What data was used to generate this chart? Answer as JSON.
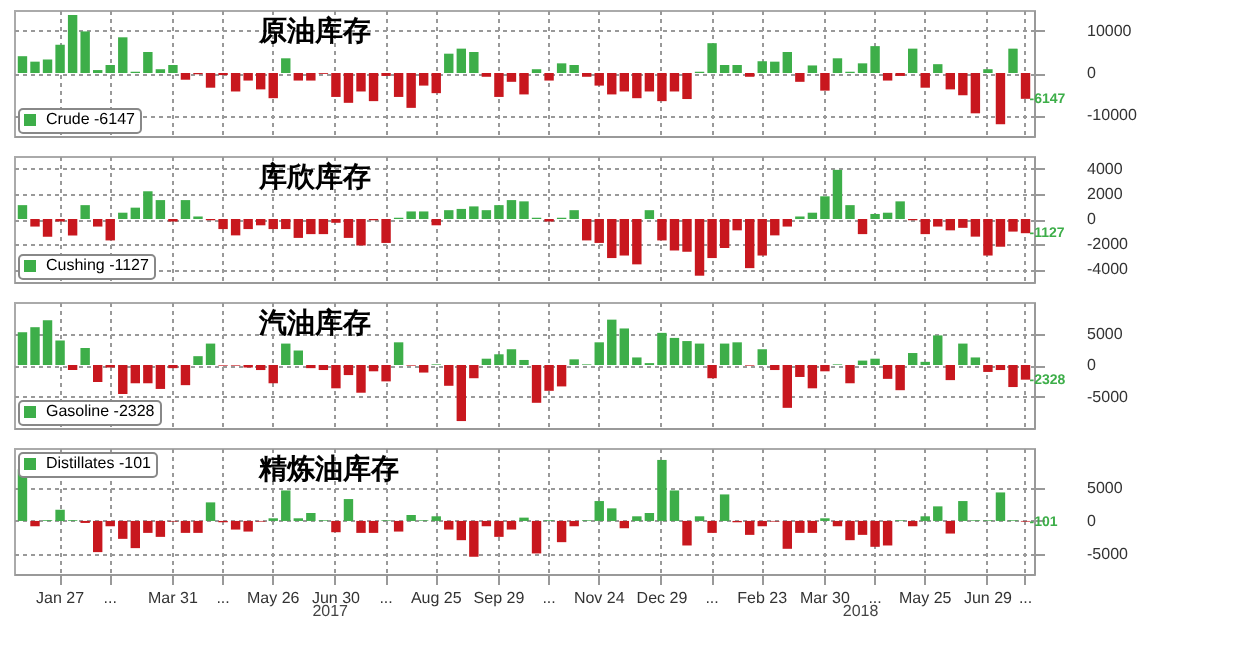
{
  "chart_data": [
    {
      "type": "bar",
      "title": "原油库存",
      "categories": [
        null,
        null,
        null,
        null,
        null,
        null,
        null,
        null,
        null,
        null,
        null,
        null,
        null,
        null,
        null,
        null,
        null,
        null,
        null,
        null,
        null,
        null,
        null,
        null,
        null,
        null,
        null,
        null,
        null,
        null,
        null,
        null,
        null,
        null,
        null,
        null,
        null,
        null,
        null,
        null,
        null,
        null,
        null,
        null,
        null,
        null,
        null,
        null,
        null,
        null,
        null,
        null,
        null,
        null,
        null,
        null,
        null,
        null,
        null,
        null,
        null,
        null,
        null,
        null,
        null,
        null,
        null,
        null,
        null,
        null,
        null,
        null,
        null,
        null,
        null,
        null,
        null,
        null,
        null,
        null,
        null
      ],
      "tick_labels": "y",
      "grid": true,
      "legend": "bottom left",
      "ylim": [
        -15000,
        15000
      ],
      "yticks": [
        10000,
        0,
        -10000
      ],
      "series": [
        {
          "name": "Crude -6147",
          "color": "#3dae49",
          "values": [
            4000,
            2700,
            3200,
            6700,
            13800,
            9900,
            700,
            1900,
            8500,
            300,
            5000,
            900,
            1900,
            -1600,
            -300,
            -3500,
            -500,
            -4400,
            -1800,
            -3900,
            -6000,
            3500,
            -1800,
            -1800,
            -200,
            -5700,
            -7100,
            -4400,
            -6700,
            -700,
            -5700,
            -8300,
            -3000,
            -4800,
            4600,
            5800,
            5000,
            -900,
            -5700,
            -2100,
            -5100,
            900,
            -1800,
            2300,
            1900,
            -900,
            -3000,
            -5100,
            -4400,
            -6000,
            -4400,
            -6700,
            -4400,
            -6200,
            300,
            7100,
            1900,
            1900,
            -900,
            2800,
            2700,
            5000,
            -2100,
            1800,
            -4200,
            3500,
            300,
            2300,
            6400,
            -1800,
            -700,
            5800,
            -3500,
            2100,
            -3900,
            -5300,
            -9600,
            900,
            -12200,
            5800,
            -6147
          ],
          "colors": [
            "#3dae49",
            "#3dae49",
            "#3dae49",
            "#3dae49",
            "#3dae49",
            "#3dae49",
            "#3dae49",
            "#3dae49",
            "#3dae49",
            "#3dae49",
            "#3dae49",
            "#3dae49",
            "#3dae49",
            "#c8171e",
            "#c8171e",
            "#c8171e",
            "#c8171e",
            "#c8171e",
            "#c8171e",
            "#c8171e",
            "#c8171e",
            "#3dae49",
            "#c8171e",
            "#c8171e",
            "#c8171e",
            "#c8171e",
            "#c8171e",
            "#c8171e",
            "#c8171e",
            "#c8171e",
            "#c8171e",
            "#c8171e",
            "#c8171e",
            "#c8171e",
            "#3dae49",
            "#3dae49",
            "#3dae49",
            "#c8171e",
            "#c8171e",
            "#c8171e",
            "#c8171e",
            "#3dae49",
            "#c8171e",
            "#3dae49",
            "#3dae49",
            "#c8171e",
            "#c8171e",
            "#c8171e",
            "#c8171e",
            "#c8171e",
            "#c8171e",
            "#c8171e",
            "#c8171e",
            "#c8171e",
            "#3dae49",
            "#3dae49",
            "#3dae49",
            "#3dae49",
            "#c8171e",
            "#3dae49",
            "#3dae49",
            "#3dae49",
            "#c8171e",
            "#3dae49",
            "#c8171e",
            "#3dae49",
            "#3dae49",
            "#3dae49",
            "#3dae49",
            "#c8171e",
            "#c8171e",
            "#3dae49",
            "#c8171e",
            "#3dae49",
            "#c8171e",
            "#c8171e",
            "#c8171e",
            "#3dae49",
            "#c8171e",
            "#3dae49",
            "#c8171e"
          ],
          "value_labels": [
            null,
            null,
            null,
            null,
            null,
            null,
            null,
            null,
            null,
            null,
            null,
            null,
            null,
            null,
            null,
            null,
            null,
            null,
            null,
            null,
            null,
            null,
            null,
            null,
            null,
            null,
            null,
            null,
            null,
            null,
            null,
            null,
            null,
            null,
            null,
            null,
            null,
            null,
            null,
            null,
            null,
            null,
            null,
            null,
            null,
            null,
            null,
            null,
            null,
            null,
            null,
            null,
            null,
            null,
            null,
            null,
            null,
            null,
            null,
            null,
            null,
            null,
            null,
            null,
            null,
            null,
            null,
            null,
            null,
            null,
            null,
            null,
            null,
            null,
            null,
            null,
            null,
            null,
            null,
            null,
            "-6147"
          ]
        }
      ]
    },
    {
      "type": "bar",
      "title": "库欣库存",
      "categories": [
        null,
        null,
        null,
        null,
        null,
        null,
        null,
        null,
        null,
        null,
        null,
        null,
        null,
        null,
        null,
        null,
        null,
        null,
        null,
        null,
        null,
        null,
        null,
        null,
        null,
        null,
        null,
        null,
        null,
        null,
        null,
        null,
        null,
        null,
        null,
        null,
        null,
        null,
        null,
        null,
        null,
        null,
        null,
        null,
        null,
        null,
        null,
        null,
        null,
        null,
        null,
        null,
        null,
        null,
        null,
        null,
        null,
        null,
        null,
        null,
        null,
        null,
        null,
        null,
        null,
        null,
        null,
        null,
        null,
        null,
        null,
        null,
        null,
        null,
        null,
        null,
        null,
        null,
        null,
        null,
        null
      ],
      "tick_labels": "y",
      "grid": true,
      "legend": "bottom left",
      "ylim": [
        -5000,
        5000
      ],
      "yticks": [
        4000,
        2000,
        0,
        -2000,
        -4000
      ],
      "series": [
        {
          "name": "Cushing -1127",
          "color": "#3dae49",
          "values": [
            1100,
            -600,
            -1400,
            -200,
            -1300,
            1100,
            -600,
            -1700,
            500,
            900,
            2200,
            1500,
            -200,
            1500,
            200,
            -100,
            -800,
            -1300,
            -800,
            -500,
            -800,
            -800,
            -1500,
            -1200,
            -1200,
            -300,
            -1500,
            -2100,
            -100,
            -1900,
            100,
            600,
            600,
            -500,
            700,
            800,
            1000,
            700,
            1100,
            1500,
            1400,
            100,
            -200,
            100,
            700,
            -1700,
            -1900,
            -3100,
            -2900,
            -3600,
            700,
            -1700,
            -2500,
            -2600,
            -4500,
            -3100,
            -2300,
            -900,
            -3900,
            -2900,
            -1300,
            -600,
            200,
            500,
            1800,
            3900,
            1100,
            -1200,
            400,
            500,
            1400,
            -100,
            -1200,
            -600,
            -900,
            -700,
            -1400,
            -2900,
            -2200,
            -1000,
            -1127
          ],
          "colors": [
            "#3dae49",
            "#c8171e",
            "#c8171e",
            "#c8171e",
            "#c8171e",
            "#3dae49",
            "#c8171e",
            "#c8171e",
            "#3dae49",
            "#3dae49",
            "#3dae49",
            "#3dae49",
            "#c8171e",
            "#3dae49",
            "#3dae49",
            "#c8171e",
            "#c8171e",
            "#c8171e",
            "#c8171e",
            "#c8171e",
            "#c8171e",
            "#c8171e",
            "#c8171e",
            "#c8171e",
            "#c8171e",
            "#c8171e",
            "#c8171e",
            "#c8171e",
            "#c8171e",
            "#c8171e",
            "#3dae49",
            "#3dae49",
            "#3dae49",
            "#c8171e",
            "#3dae49",
            "#3dae49",
            "#3dae49",
            "#3dae49",
            "#3dae49",
            "#3dae49",
            "#3dae49",
            "#3dae49",
            "#c8171e",
            "#3dae49",
            "#3dae49",
            "#c8171e",
            "#c8171e",
            "#c8171e",
            "#c8171e",
            "#c8171e",
            "#3dae49",
            "#c8171e",
            "#c8171e",
            "#c8171e",
            "#c8171e",
            "#c8171e",
            "#c8171e",
            "#c8171e",
            "#c8171e",
            "#c8171e",
            "#c8171e",
            "#c8171e",
            "#3dae49",
            "#3dae49",
            "#3dae49",
            "#3dae49",
            "#3dae49",
            "#c8171e",
            "#3dae49",
            "#3dae49",
            "#3dae49",
            "#c8171e",
            "#c8171e",
            "#c8171e",
            "#c8171e",
            "#c8171e",
            "#c8171e",
            "#c8171e",
            "#c8171e",
            "#c8171e",
            "#c8171e"
          ],
          "value_labels": [
            null,
            null,
            null,
            null,
            null,
            null,
            null,
            null,
            null,
            null,
            null,
            null,
            null,
            null,
            null,
            null,
            null,
            null,
            null,
            null,
            null,
            null,
            null,
            null,
            null,
            null,
            null,
            null,
            null,
            null,
            null,
            null,
            null,
            null,
            null,
            null,
            null,
            null,
            null,
            null,
            null,
            null,
            null,
            null,
            null,
            null,
            null,
            null,
            null,
            null,
            null,
            null,
            null,
            null,
            null,
            null,
            null,
            null,
            null,
            null,
            null,
            null,
            null,
            null,
            null,
            null,
            null,
            null,
            null,
            null,
            null,
            null,
            null,
            null,
            null,
            null,
            null,
            null,
            null,
            null,
            "-1127"
          ]
        }
      ]
    },
    {
      "type": "bar",
      "title": "汽油库存",
      "categories": [
        null,
        null,
        null,
        null,
        null,
        null,
        null,
        null,
        null,
        null,
        null,
        null,
        null,
        null,
        null,
        null,
        null,
        null,
        null,
        null,
        null,
        null,
        null,
        null,
        null,
        null,
        null,
        null,
        null,
        null,
        null,
        null,
        null,
        null,
        null,
        null,
        null,
        null,
        null,
        null,
        null,
        null,
        null,
        null,
        null,
        null,
        null,
        null,
        null,
        null,
        null,
        null,
        null,
        null,
        null,
        null,
        null,
        null,
        null,
        null,
        null,
        null,
        null,
        null,
        null,
        null,
        null,
        null,
        null,
        null,
        null,
        null,
        null,
        null,
        null,
        null,
        null,
        null,
        null,
        null,
        null
      ],
      "tick_labels": "y",
      "grid": true,
      "legend": "bottom left",
      "ylim": [
        -10000,
        10000
      ],
      "yticks": [
        5000,
        0,
        -5000
      ],
      "series": [
        {
          "name": "Gasoline -2328",
          "color": "#3dae49",
          "values": [
            5200,
            6000,
            7100,
            3900,
            -800,
            2700,
            -2700,
            -400,
            -4600,
            -2900,
            -2900,
            -3800,
            -500,
            -3200,
            1400,
            3400,
            -100,
            -100,
            -400,
            -800,
            -2900,
            3400,
            2300,
            -500,
            -800,
            -3700,
            -1600,
            -4400,
            -1000,
            -2600,
            3600,
            -100,
            -1200,
            100,
            -3300,
            -8900,
            -2100,
            1000,
            1700,
            2500,
            800,
            -6000,
            -4100,
            -3400,
            900,
            100,
            3600,
            7200,
            5800,
            1200,
            300,
            5100,
            4300,
            3800,
            3400,
            -2100,
            3400,
            3600,
            -100,
            2500,
            -800,
            -6800,
            -1900,
            -3700,
            -1000,
            100,
            -2900,
            700,
            1000,
            -2200,
            -4000,
            1900,
            500,
            4700,
            -2400,
            3400,
            1200,
            -1100,
            -800,
            -3500,
            -2328
          ],
          "colors": [
            "#3dae49",
            "#3dae49",
            "#3dae49",
            "#3dae49",
            "#c8171e",
            "#3dae49",
            "#c8171e",
            "#c8171e",
            "#c8171e",
            "#c8171e",
            "#c8171e",
            "#c8171e",
            "#c8171e",
            "#c8171e",
            "#3dae49",
            "#3dae49",
            "#c8171e",
            "#c8171e",
            "#c8171e",
            "#c8171e",
            "#c8171e",
            "#3dae49",
            "#3dae49",
            "#c8171e",
            "#c8171e",
            "#c8171e",
            "#c8171e",
            "#c8171e",
            "#c8171e",
            "#c8171e",
            "#3dae49",
            "#c8171e",
            "#c8171e",
            "#3dae49",
            "#c8171e",
            "#c8171e",
            "#c8171e",
            "#3dae49",
            "#3dae49",
            "#3dae49",
            "#3dae49",
            "#c8171e",
            "#c8171e",
            "#c8171e",
            "#3dae49",
            "#3dae49",
            "#3dae49",
            "#3dae49",
            "#3dae49",
            "#3dae49",
            "#3dae49",
            "#3dae49",
            "#3dae49",
            "#3dae49",
            "#3dae49",
            "#c8171e",
            "#3dae49",
            "#3dae49",
            "#c8171e",
            "#3dae49",
            "#c8171e",
            "#c8171e",
            "#c8171e",
            "#c8171e",
            "#c8171e",
            "#3dae49",
            "#c8171e",
            "#3dae49",
            "#3dae49",
            "#c8171e",
            "#c8171e",
            "#3dae49",
            "#3dae49",
            "#3dae49",
            "#c8171e",
            "#3dae49",
            "#3dae49",
            "#c8171e",
            "#c8171e",
            "#c8171e",
            "#c8171e"
          ],
          "value_labels": [
            null,
            null,
            null,
            null,
            null,
            null,
            null,
            null,
            null,
            null,
            null,
            null,
            null,
            null,
            null,
            null,
            null,
            null,
            null,
            null,
            null,
            null,
            null,
            null,
            null,
            null,
            null,
            null,
            null,
            null,
            null,
            null,
            null,
            null,
            null,
            null,
            null,
            null,
            null,
            null,
            null,
            null,
            null,
            null,
            null,
            null,
            null,
            null,
            null,
            null,
            null,
            null,
            null,
            null,
            null,
            null,
            null,
            null,
            null,
            null,
            null,
            null,
            null,
            null,
            null,
            null,
            null,
            null,
            null,
            null,
            null,
            null,
            null,
            null,
            null,
            null,
            null,
            null,
            null,
            null,
            "-2328"
          ]
        }
      ]
    },
    {
      "type": "bar",
      "title": "精炼油库存",
      "categories": [
        null,
        null,
        null,
        "Jan 27",
        null,
        null,
        null,
        "...",
        null,
        null,
        null,
        null,
        "Mar 31",
        null,
        null,
        null,
        "...",
        null,
        null,
        null,
        "May 26",
        null,
        null,
        null,
        null,
        "Jun 30",
        null,
        null,
        null,
        "...",
        null,
        null,
        null,
        "Aug 25",
        null,
        null,
        null,
        null,
        "Sep 29",
        null,
        null,
        null,
        "...",
        null,
        null,
        null,
        "Nov 24",
        null,
        null,
        null,
        null,
        "Dec 29",
        null,
        null,
        null,
        "...",
        null,
        null,
        null,
        "Feb 23",
        null,
        null,
        null,
        null,
        "Mar 30",
        null,
        null,
        null,
        "...",
        null,
        null,
        null,
        "May 25",
        null,
        null,
        null,
        null,
        "Jun 29",
        null,
        null,
        "..."
      ],
      "grid": true,
      "legend": "top left",
      "ylim": [
        -8000,
        11000
      ],
      "yticks": [
        5000,
        0,
        -5000
      ],
      "annotations": [
        "2017",
        "2018"
      ],
      "series": [
        {
          "name": "Distillates -101",
          "color": "#3dae49",
          "values": [
            7800,
            -800,
            100,
            1700,
            100,
            -300,
            -4700,
            -800,
            -2700,
            -4100,
            -1800,
            -2400,
            -100,
            -1800,
            -1800,
            2800,
            -200,
            -1300,
            -1600,
            -100,
            400,
            4600,
            400,
            1200,
            100,
            -1700,
            3300,
            -1800,
            -1800,
            100,
            -1600,
            900,
            100,
            700,
            -1300,
            -2900,
            -5400,
            -800,
            -2400,
            -1300,
            500,
            -4900,
            100,
            -3200,
            -800,
            100,
            3000,
            1900,
            -1100,
            700,
            1200,
            9200,
            4600,
            -3700,
            700,
            -1800,
            4000,
            -200,
            -2100,
            -800,
            -100,
            -4200,
            -1800,
            -1800,
            400,
            -800,
            -2900,
            -2100,
            -3900,
            -3700,
            100,
            -800,
            700,
            2200,
            -1900,
            3000,
            100,
            100,
            4300,
            100,
            -101
          ],
          "colors": [
            "#3dae49",
            "#c8171e",
            "#3dae49",
            "#3dae49",
            "#3dae49",
            "#c8171e",
            "#c8171e",
            "#c8171e",
            "#c8171e",
            "#c8171e",
            "#c8171e",
            "#c8171e",
            "#c8171e",
            "#c8171e",
            "#c8171e",
            "#3dae49",
            "#c8171e",
            "#c8171e",
            "#c8171e",
            "#c8171e",
            "#3dae49",
            "#3dae49",
            "#3dae49",
            "#3dae49",
            "#3dae49",
            "#c8171e",
            "#3dae49",
            "#c8171e",
            "#c8171e",
            "#3dae49",
            "#c8171e",
            "#3dae49",
            "#3dae49",
            "#3dae49",
            "#c8171e",
            "#c8171e",
            "#c8171e",
            "#c8171e",
            "#c8171e",
            "#c8171e",
            "#3dae49",
            "#c8171e",
            "#3dae49",
            "#c8171e",
            "#c8171e",
            "#3dae49",
            "#3dae49",
            "#3dae49",
            "#c8171e",
            "#3dae49",
            "#3dae49",
            "#3dae49",
            "#3dae49",
            "#c8171e",
            "#3dae49",
            "#c8171e",
            "#3dae49",
            "#c8171e",
            "#c8171e",
            "#c8171e",
            "#c8171e",
            "#c8171e",
            "#c8171e",
            "#c8171e",
            "#3dae49",
            "#c8171e",
            "#c8171e",
            "#c8171e",
            "#c8171e",
            "#c8171e",
            "#3dae49",
            "#c8171e",
            "#3dae49",
            "#3dae49",
            "#c8171e",
            "#3dae49",
            "#3dae49",
            "#3dae49",
            "#3dae49",
            "#3dae49",
            "#c8171e"
          ],
          "value_labels": [
            null,
            null,
            null,
            null,
            null,
            null,
            null,
            null,
            null,
            null,
            null,
            null,
            null,
            null,
            null,
            null,
            null,
            null,
            null,
            null,
            null,
            null,
            null,
            null,
            null,
            null,
            null,
            null,
            null,
            null,
            null,
            null,
            null,
            null,
            null,
            null,
            null,
            null,
            null,
            null,
            null,
            null,
            null,
            null,
            null,
            null,
            null,
            null,
            null,
            null,
            null,
            null,
            null,
            null,
            null,
            null,
            null,
            null,
            null,
            null,
            null,
            null,
            null,
            null,
            null,
            null,
            null,
            null,
            null,
            null,
            null,
            null,
            null,
            null,
            null,
            null,
            null,
            null,
            null,
            null,
            "-101"
          ]
        }
      ]
    }
  ]
}
